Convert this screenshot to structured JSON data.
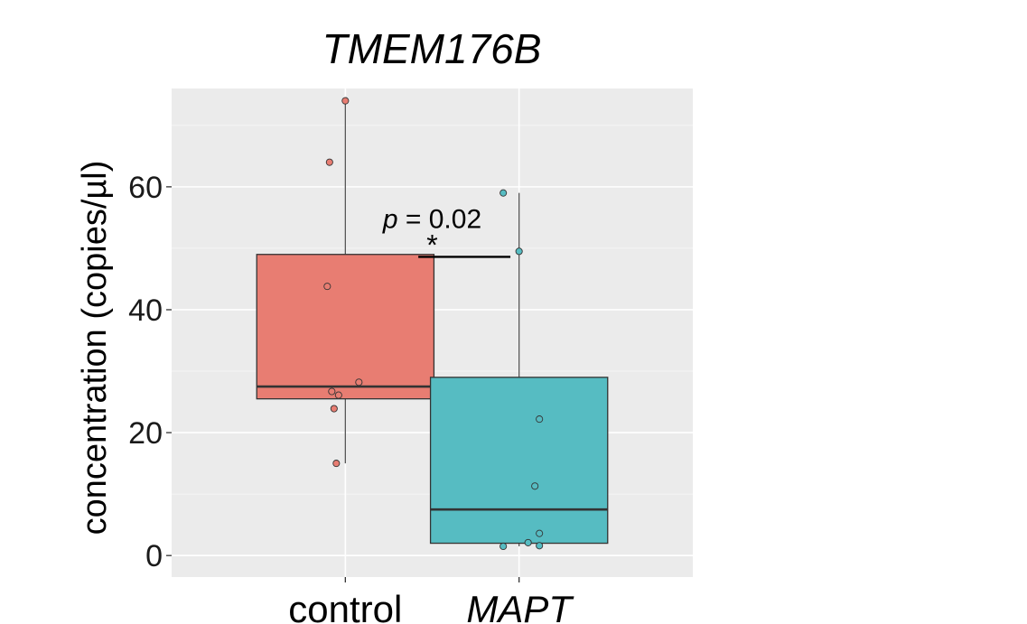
{
  "chart_data": {
    "type": "box",
    "title": "TMEM176B",
    "xlabel": "",
    "ylabel": "concentration (copies/µl)",
    "ylim": [
      -3.5,
      76
    ],
    "yticks": [
      0,
      20,
      40,
      60
    ],
    "categories": [
      "control",
      "MAPT"
    ],
    "grid": true,
    "groups": [
      {
        "name": "control",
        "fill": "#E87D72",
        "point_color": "#E87D72",
        "whisker_low": 15,
        "q1": 25.5,
        "median": 27.5,
        "q3": 49,
        "whisker_high": 74,
        "points": [
          {
            "y": 74,
            "jitter": 0.0
          },
          {
            "y": 64,
            "jitter": -0.07
          },
          {
            "y": 43.8,
            "jitter": -0.08
          },
          {
            "y": 28.2,
            "jitter": 0.06
          },
          {
            "y": 26.7,
            "jitter": -0.06
          },
          {
            "y": 26.1,
            "jitter": -0.03
          },
          {
            "y": 23.9,
            "jitter": -0.05
          },
          {
            "y": 15,
            "jitter": -0.04
          }
        ]
      },
      {
        "name": "MAPT",
        "fill": "#56BCC2",
        "point_color": "#56BCC2",
        "whisker_low": 1.5,
        "q1": 2,
        "median": 7.5,
        "q3": 29,
        "whisker_high": 59,
        "points": [
          {
            "y": 59,
            "jitter": -0.07
          },
          {
            "y": 49.5,
            "jitter": 0.0
          },
          {
            "y": 22.2,
            "jitter": 0.09
          },
          {
            "y": 11.3,
            "jitter": 0.07
          },
          {
            "y": 3.6,
            "jitter": 0.09
          },
          {
            "y": 2.1,
            "jitter": 0.04
          },
          {
            "y": 1.6,
            "jitter": 0.09
          },
          {
            "y": 1.5,
            "jitter": -0.07
          }
        ]
      }
    ],
    "annotation": {
      "p_symbol": "p",
      "p_rest": " = 0.02",
      "star": "*",
      "bar_y": 48.6
    }
  }
}
